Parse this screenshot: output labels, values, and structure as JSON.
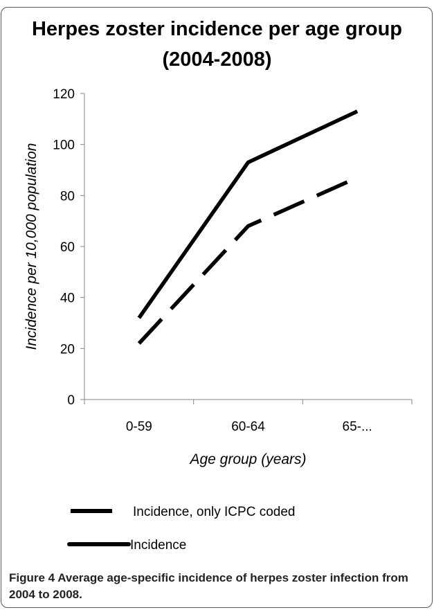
{
  "chart_data": {
    "type": "line",
    "title_line1": "Herpes zoster incidence per age group",
    "title_line2": "(2004-2008)",
    "xlabel": "Age group (years)",
    "ylabel": "Incidence per 10,000 population",
    "categories": [
      "0-59",
      "60-64",
      "65-..."
    ],
    "ylim": [
      0,
      120
    ],
    "yticks": [
      "0",
      "20",
      "40",
      "60",
      "80",
      "100",
      "120"
    ],
    "grid": false,
    "legend_position": "bottom-left",
    "series": [
      {
        "name": "Incidence, only ICPC coded",
        "values": [
          22,
          68,
          87
        ],
        "style": "dashed",
        "color": "#000000"
      },
      {
        "name": "Incidence",
        "values": [
          32,
          93,
          113
        ],
        "style": "solid",
        "color": "#000000"
      }
    ]
  },
  "caption": {
    "lead": "Figure 4",
    "text": " Average age-specific incidence of herpes zoster infection from 2004 to 2008."
  }
}
